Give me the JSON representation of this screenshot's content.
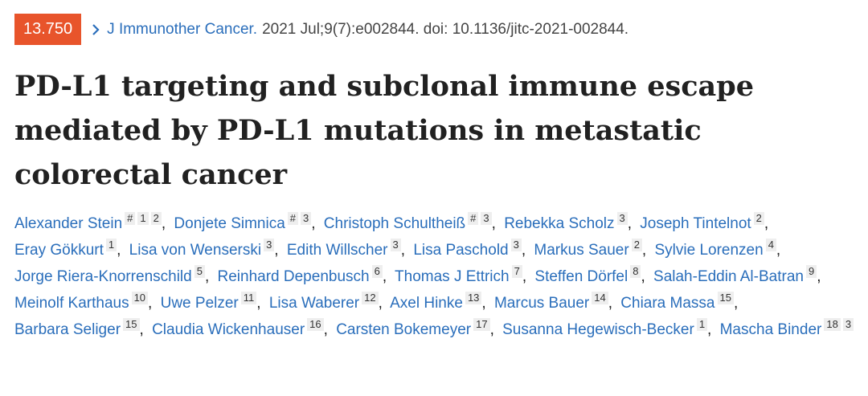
{
  "badge": "13.750",
  "citation": {
    "journal": "J Immunother Cancer.",
    "details": "2021 Jul;9(7):e002844. doi: 10.1136/jitc-2021-002844."
  },
  "title": "PD-L1 targeting and subclonal immune escape mediated by PD-L1 mutations in metastatic colorectal cancer",
  "separator": ",",
  "authors": [
    {
      "name": "Alexander Stein",
      "marks": [
        "#",
        "1",
        "2"
      ]
    },
    {
      "name": "Donjete Simnica",
      "marks": [
        "#",
        "3"
      ]
    },
    {
      "name": "Christoph Schultheiß",
      "marks": [
        "#",
        "3"
      ]
    },
    {
      "name": "Rebekka Scholz",
      "marks": [
        "3"
      ]
    },
    {
      "name": "Joseph Tintelnot",
      "marks": [
        "2"
      ]
    },
    {
      "name": "Eray Gökkurt",
      "marks": [
        "1"
      ]
    },
    {
      "name": "Lisa von Wenserski",
      "marks": [
        "3"
      ]
    },
    {
      "name": "Edith Willscher",
      "marks": [
        "3"
      ]
    },
    {
      "name": "Lisa Paschold",
      "marks": [
        "3"
      ]
    },
    {
      "name": "Markus Sauer",
      "marks": [
        "2"
      ]
    },
    {
      "name": "Sylvie Lorenzen",
      "marks": [
        "4"
      ]
    },
    {
      "name": "Jorge Riera-Knorrenschild",
      "marks": [
        "5"
      ]
    },
    {
      "name": "Reinhard Depenbusch",
      "marks": [
        "6"
      ]
    },
    {
      "name": "Thomas J Ettrich",
      "marks": [
        "7"
      ]
    },
    {
      "name": "Steffen Dörfel",
      "marks": [
        "8"
      ]
    },
    {
      "name": "Salah-Eddin Al-Batran",
      "marks": [
        "9"
      ]
    },
    {
      "name": "Meinolf Karthaus",
      "marks": [
        "10"
      ]
    },
    {
      "name": "Uwe Pelzer",
      "marks": [
        "11"
      ]
    },
    {
      "name": "Lisa Waberer",
      "marks": [
        "12"
      ]
    },
    {
      "name": "Axel Hinke",
      "marks": [
        "13"
      ]
    },
    {
      "name": "Marcus Bauer",
      "marks": [
        "14"
      ]
    },
    {
      "name": "Chiara Massa",
      "marks": [
        "15"
      ]
    },
    {
      "name": "Barbara Seliger",
      "marks": [
        "15"
      ]
    },
    {
      "name": "Claudia Wickenhauser",
      "marks": [
        "16"
      ]
    },
    {
      "name": "Carsten Bokemeyer",
      "marks": [
        "17"
      ]
    },
    {
      "name": "Susanna Hegewisch-Becker",
      "marks": [
        "1"
      ]
    },
    {
      "name": "Mascha Binder",
      "marks": [
        "18",
        "3"
      ]
    }
  ]
}
